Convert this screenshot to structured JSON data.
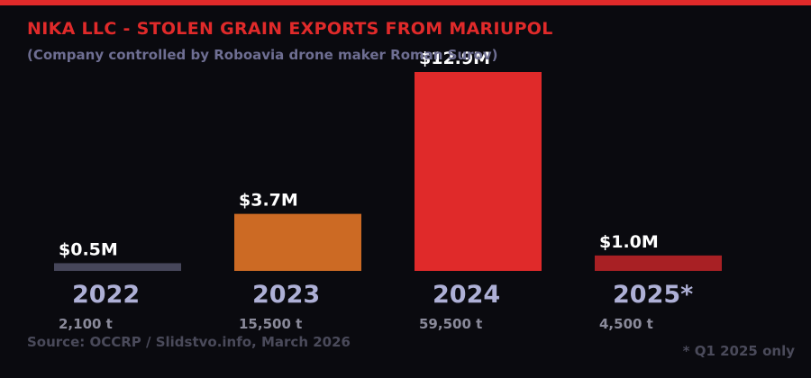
{
  "colors": {
    "background": "#0a0a0f",
    "accent": "#e02a2a",
    "title": "#e02a2a",
    "subtitle": "#6e6e92",
    "value_label": "#ffffff",
    "category_label": "#aeb0d6",
    "tonnage_label": "#8a8a9a",
    "source": "#4a4a5a",
    "footnote": "#4a4a5a"
  },
  "chart_data": {
    "type": "bar",
    "title": "NIKA LLC - STOLEN GRAIN EXPORTS FROM MARIUPOL",
    "subtitle": "(Company controlled by Roboavia drone maker Roman Surov)",
    "categories": [
      "2022",
      "2023",
      "2024",
      "2025*"
    ],
    "values": [
      0.5,
      3.7,
      12.9,
      1.0
    ],
    "value_labels": [
      "$0.5M",
      "$3.7M",
      "$12.9M",
      "$1.0M"
    ],
    "tonnage_labels": [
      "2,100 t",
      "15,500 t",
      "59,500 t",
      "4,500 t"
    ],
    "bar_colors": [
      "#46465a",
      "#cc6a24",
      "#e02a2a",
      "#a82024"
    ],
    "ylim": [
      0,
      12.9
    ],
    "grid": false,
    "legend": "none",
    "source": "Source: OCCRP / Slidstvo.info, March 2026",
    "footnote": "* Q1 2025 only"
  }
}
